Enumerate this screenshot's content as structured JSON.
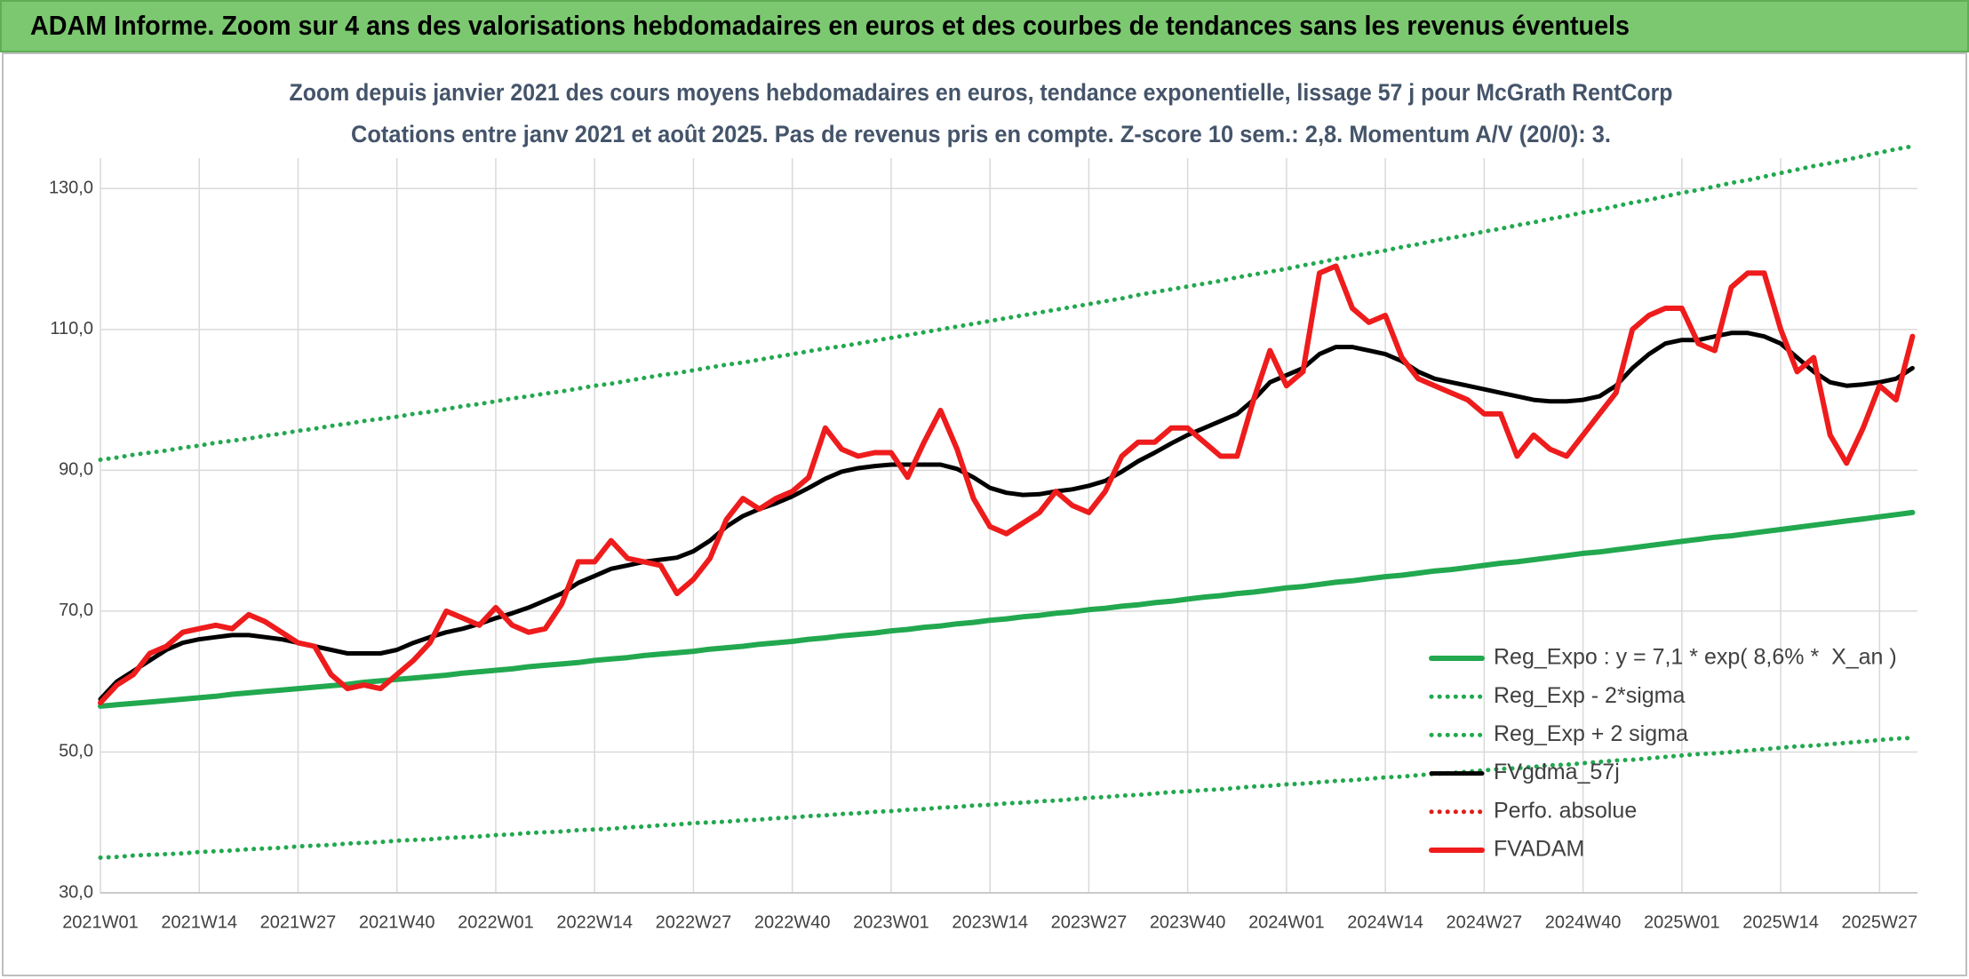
{
  "chart_data": {
    "type": "line",
    "title": "ADAM Informe. Zoom sur 4 ans des valorisations hebdomadaires en euros et des courbes de tendances sans les revenus éventuels",
    "subtitle": [
      "Zoom depuis janvier 2021 des cours moyens hebdomadaires en euros, tendance exponentielle, lissage 57 j pour McGrath RentCorp",
      "Cotations entre janv 2021 et août 2025. Pas de revenus pris en compte. Z-score 10 sem.: 2,8. Momentum A/V (20/0): 3."
    ],
    "categories": [
      "2021W01",
      null,
      null,
      null,
      null,
      null,
      "2021W14",
      null,
      null,
      null,
      null,
      null,
      "2021W27",
      null,
      null,
      null,
      null,
      null,
      "2021W40",
      null,
      null,
      null,
      null,
      null,
      "2022W01",
      null,
      null,
      null,
      null,
      null,
      "2022W14",
      null,
      null,
      null,
      null,
      null,
      "2022W27",
      null,
      null,
      null,
      null,
      null,
      "2022W40",
      null,
      null,
      null,
      null,
      null,
      "2023W01",
      null,
      null,
      null,
      null,
      null,
      "2023W14",
      null,
      null,
      null,
      null,
      null,
      "2023W27",
      null,
      null,
      null,
      null,
      null,
      "2023W40",
      null,
      null,
      null,
      null,
      null,
      "2024W01",
      null,
      null,
      null,
      null,
      null,
      "2024W14",
      null,
      null,
      null,
      null,
      null,
      "2024W27",
      null,
      null,
      null,
      null,
      null,
      "2024W40",
      null,
      null,
      null,
      null,
      null,
      "2025W01",
      null,
      null,
      null,
      null,
      null,
      "2025W14",
      null,
      null,
      null,
      null,
      null,
      "2025W27",
      null,
      null
    ],
    "ylim": [
      30,
      140
    ],
    "yticks": [
      {
        "value": 30,
        "label": "30,0"
      },
      {
        "value": 50,
        "label": "50,0"
      },
      {
        "value": 70,
        "label": "70,0"
      },
      {
        "value": 90,
        "label": "90,0"
      },
      {
        "value": 110,
        "label": "110,0"
      },
      {
        "value": 130,
        "label": "130,0"
      }
    ],
    "grid": true,
    "legend": "lower right",
    "series": [
      {
        "name": "Reg_Expo : y = 7,1 * exp( 8,6% *  X_an )",
        "color": "#22a84f",
        "style": "solid",
        "values": [
          56.5,
          56.7,
          56.9,
          57.1,
          57.3,
          57.5,
          57.7,
          57.9,
          58.2,
          58.4,
          58.6,
          58.8,
          59.0,
          59.2,
          59.4,
          59.6,
          59.9,
          60.1,
          60.3,
          60.5,
          60.7,
          60.9,
          61.2,
          61.4,
          61.6,
          61.8,
          62.1,
          62.3,
          62.5,
          62.7,
          63.0,
          63.2,
          63.4,
          63.7,
          63.9,
          64.1,
          64.3,
          64.6,
          64.8,
          65.0,
          65.3,
          65.5,
          65.7,
          66.0,
          66.2,
          66.5,
          66.7,
          66.9,
          67.2,
          67.4,
          67.7,
          67.9,
          68.2,
          68.4,
          68.7,
          68.9,
          69.2,
          69.4,
          69.7,
          69.9,
          70.2,
          70.4,
          70.7,
          70.9,
          71.2,
          71.4,
          71.7,
          72.0,
          72.2,
          72.5,
          72.7,
          73.0,
          73.3,
          73.5,
          73.8,
          74.1,
          74.3,
          74.6,
          74.9,
          75.1,
          75.4,
          75.7,
          75.9,
          76.2,
          76.5,
          76.8,
          77.0,
          77.3,
          77.6,
          77.9,
          78.2,
          78.4,
          78.7,
          79.0,
          79.3,
          79.6,
          79.9,
          80.2,
          80.5,
          80.7,
          81.0,
          81.3,
          81.6,
          81.9,
          82.2,
          82.5,
          82.8,
          83.1,
          83.4,
          83.7,
          84.0
        ]
      },
      {
        "name": "Reg_Exp - 2*sigma",
        "color": "#22a84f",
        "style": "dotted",
        "values": [
          35.0,
          35.1,
          35.3,
          35.4,
          35.5,
          35.6,
          35.8,
          35.9,
          36.0,
          36.2,
          36.3,
          36.4,
          36.6,
          36.7,
          36.8,
          37.0,
          37.1,
          37.2,
          37.4,
          37.5,
          37.6,
          37.8,
          37.9,
          38.0,
          38.2,
          38.3,
          38.5,
          38.6,
          38.7,
          38.9,
          39.0,
          39.1,
          39.3,
          39.4,
          39.6,
          39.7,
          39.9,
          40.0,
          40.1,
          40.3,
          40.4,
          40.6,
          40.7,
          40.9,
          41.0,
          41.2,
          41.3,
          41.5,
          41.6,
          41.8,
          41.9,
          42.1,
          42.2,
          42.4,
          42.5,
          42.7,
          42.8,
          43.0,
          43.1,
          43.3,
          43.5,
          43.6,
          43.8,
          43.9,
          44.1,
          44.3,
          44.4,
          44.6,
          44.7,
          44.9,
          45.1,
          45.2,
          45.4,
          45.5,
          45.7,
          45.9,
          46.0,
          46.2,
          46.4,
          46.5,
          46.7,
          46.9,
          47.0,
          47.2,
          47.4,
          47.6,
          47.7,
          47.9,
          48.1,
          48.2,
          48.4,
          48.6,
          48.8,
          48.9,
          49.1,
          49.3,
          49.5,
          49.7,
          49.8,
          50.0,
          50.2,
          50.4,
          50.6,
          50.8,
          50.9,
          51.1,
          51.3,
          51.5,
          51.7,
          51.9,
          52.0
        ]
      },
      {
        "name": "Reg_Exp + 2 sigma",
        "color": "#22a84f",
        "style": "dotted",
        "values": [
          91.5,
          91.8,
          92.2,
          92.5,
          92.8,
          93.2,
          93.5,
          93.9,
          94.2,
          94.5,
          94.9,
          95.2,
          95.6,
          95.9,
          96.3,
          96.6,
          97.0,
          97.3,
          97.6,
          98.0,
          98.3,
          98.7,
          99.1,
          99.4,
          99.8,
          100.2,
          100.5,
          100.9,
          101.2,
          101.6,
          102.0,
          102.3,
          102.7,
          103.1,
          103.5,
          103.8,
          104.2,
          104.6,
          105.0,
          105.3,
          105.7,
          106.1,
          106.5,
          106.9,
          107.3,
          107.6,
          108.0,
          108.4,
          108.8,
          109.2,
          109.6,
          110.0,
          110.4,
          110.8,
          111.2,
          111.6,
          112.0,
          112.4,
          112.8,
          113.2,
          113.6,
          114.0,
          114.4,
          114.9,
          115.3,
          115.7,
          116.1,
          116.5,
          116.9,
          117.4,
          117.8,
          118.2,
          118.6,
          119.1,
          119.5,
          120.0,
          120.4,
          120.8,
          121.2,
          121.7,
          122.1,
          122.6,
          123.0,
          123.4,
          123.9,
          124.3,
          124.8,
          125.2,
          125.7,
          126.1,
          126.6,
          127.0,
          127.5,
          128.0,
          128.4,
          128.9,
          129.4,
          129.8,
          130.3,
          130.8,
          131.2,
          131.7,
          132.2,
          132.7,
          133.2,
          133.6,
          134.1,
          134.6,
          135.1,
          135.6,
          136.0
        ]
      },
      {
        "name": "FVgdma_57j",
        "color": "#000000",
        "style": "solid",
        "values": [
          57.5,
          60,
          61.5,
          63,
          64.5,
          65.5,
          66,
          66.3,
          66.6,
          66.6,
          66.3,
          66,
          65.5,
          65,
          64.5,
          64,
          64,
          64,
          64.5,
          65.5,
          66.3,
          67,
          67.5,
          68.2,
          69,
          69.7,
          70.5,
          71.5,
          72.5,
          74,
          75,
          76,
          76.5,
          77,
          77.3,
          77.6,
          78.5,
          80,
          82,
          83.5,
          84.5,
          85.3,
          86.3,
          87.5,
          88.8,
          89.8,
          90.3,
          90.6,
          90.8,
          90.8,
          90.8,
          90.8,
          90.2,
          89,
          87.5,
          86.8,
          86.5,
          86.6,
          87,
          87.3,
          87.8,
          88.5,
          89.8,
          91.3,
          92.5,
          93.8,
          95,
          96,
          97,
          98,
          100,
          102.5,
          103.5,
          104.5,
          106.5,
          107.5,
          107.5,
          107,
          106.5,
          105.5,
          104,
          103,
          102.5,
          102,
          101.5,
          101,
          100.5,
          100,
          99.8,
          99.8,
          100,
          100.5,
          102,
          104.5,
          106.5,
          108,
          108.5,
          108.5,
          109,
          109.5,
          109.5,
          109,
          108,
          106,
          104,
          102.5,
          102,
          102.2,
          102.5,
          103,
          104.5
        ]
      },
      {
        "name": "Perfo. absolue",
        "color": "#e0201b",
        "style": "dotted",
        "values": [
          null,
          null,
          null,
          null,
          null,
          null,
          null,
          null,
          null,
          null,
          null,
          null,
          null,
          null,
          null,
          null,
          null,
          null,
          null,
          null,
          null,
          null,
          null,
          null,
          null,
          null,
          null,
          null,
          null,
          null,
          null,
          null,
          null,
          null,
          null,
          null,
          null,
          null,
          null,
          null,
          null,
          null,
          null,
          null,
          null,
          null,
          null,
          null,
          null,
          null,
          null,
          null,
          null,
          null,
          null,
          null,
          null,
          null,
          null,
          null,
          null,
          null,
          null,
          null,
          null,
          null,
          null,
          null,
          null,
          null,
          null,
          null,
          null,
          null,
          null,
          null,
          null,
          null,
          null,
          null,
          null,
          null,
          null,
          null,
          null,
          null,
          null,
          null,
          null,
          null,
          null,
          null,
          null,
          null,
          null,
          null,
          null,
          null,
          null,
          null,
          null,
          null,
          null,
          null,
          null,
          null,
          null,
          null,
          null,
          null,
          null
        ]
      },
      {
        "name": "FVADAM",
        "color": "#ee1c1c",
        "style": "solid",
        "values": [
          57,
          59.5,
          61,
          64,
          65,
          67,
          67.5,
          68,
          67.5,
          69.5,
          68.5,
          67,
          65.5,
          65,
          61,
          59,
          59.5,
          59,
          61,
          63,
          65.5,
          70,
          69,
          68,
          70.5,
          68,
          67,
          67.5,
          71,
          77,
          77,
          80,
          77.5,
          77,
          76.5,
          72.5,
          74.5,
          77.5,
          83,
          86,
          84.5,
          86,
          87,
          89,
          96,
          93,
          92,
          92.5,
          92.5,
          89,
          94,
          98.5,
          93,
          86,
          82,
          81,
          82.5,
          84,
          87,
          85,
          84,
          87,
          92,
          94,
          94,
          96,
          96,
          94,
          92,
          92,
          100,
          107,
          102,
          104,
          118,
          119,
          113,
          111,
          112,
          106,
          103,
          102,
          101,
          100,
          98,
          98,
          92,
          95,
          93,
          92,
          95,
          98,
          101,
          110,
          112,
          113,
          113,
          108,
          107,
          116,
          118,
          118,
          110,
          104,
          106,
          95,
          91,
          96,
          102,
          100,
          109
        ]
      }
    ]
  }
}
